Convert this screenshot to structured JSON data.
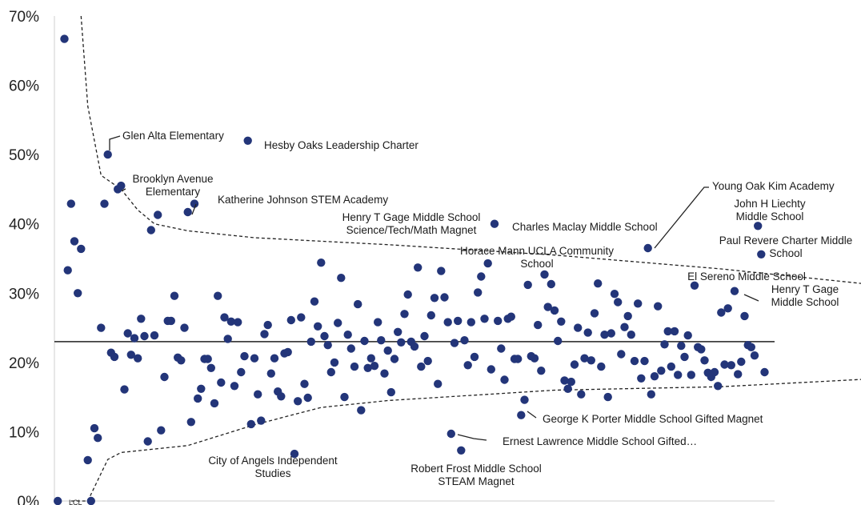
{
  "chart_data": {
    "type": "scatter",
    "ylim": [
      0,
      70
    ],
    "yticks": [
      "0%",
      "10%",
      "20%",
      "30%",
      "40%",
      "50%",
      "60%",
      "70%"
    ],
    "center_line": 23,
    "colors": {
      "point": "#233579",
      "line": "#222222",
      "text": "#1a1a1a"
    },
    "corner_label": "LCL",
    "upper_control_limit": [
      [
        8,
        70
      ],
      [
        10,
        57
      ],
      [
        12,
        52
      ],
      [
        14,
        47
      ],
      [
        20,
        45
      ],
      [
        25,
        42
      ],
      [
        30,
        40
      ],
      [
        40,
        39
      ],
      [
        60,
        38
      ],
      [
        80,
        37.5
      ],
      [
        100,
        37
      ],
      [
        150,
        35.5
      ],
      [
        200,
        33.5
      ],
      [
        250,
        31
      ],
      [
        260,
        29
      ]
    ],
    "lower_control_limit": [
      [
        5,
        0
      ],
      [
        10,
        0
      ],
      [
        12,
        2
      ],
      [
        16,
        6
      ],
      [
        20,
        7
      ],
      [
        40,
        8
      ],
      [
        60,
        11
      ],
      [
        80,
        13.5
      ],
      [
        100,
        14.5
      ],
      [
        150,
        16
      ],
      [
        200,
        16.5
      ],
      [
        260,
        18
      ]
    ],
    "points": [
      [
        1,
        0
      ],
      [
        3,
        66.7
      ],
      [
        4,
        33.3
      ],
      [
        5,
        42.9
      ],
      [
        6,
        37.5
      ],
      [
        7,
        30
      ],
      [
        8,
        36.4
      ],
      [
        10,
        5.9
      ],
      [
        11,
        0
      ],
      [
        12,
        10.5
      ],
      [
        13,
        9.1
      ],
      [
        14,
        25
      ],
      [
        15,
        42.9
      ],
      [
        16,
        50
      ],
      [
        17,
        21.4
      ],
      [
        18,
        20.8
      ],
      [
        19,
        45
      ],
      [
        20,
        45.5
      ],
      [
        21,
        16.1
      ],
      [
        22,
        24.2
      ],
      [
        23,
        21.1
      ],
      [
        24,
        23.5
      ],
      [
        25,
        20.6
      ],
      [
        26,
        26.3
      ],
      [
        27,
        23.8
      ],
      [
        28,
        8.6
      ],
      [
        29,
        39.1
      ],
      [
        30,
        23.9
      ],
      [
        31,
        41.3
      ],
      [
        32,
        10.2
      ],
      [
        33,
        17.9
      ],
      [
        34,
        26
      ],
      [
        35,
        26
      ],
      [
        36,
        29.6
      ],
      [
        37,
        20.7
      ],
      [
        38,
        20.3
      ],
      [
        39,
        25
      ],
      [
        40,
        41.7
      ],
      [
        41,
        11.4
      ],
      [
        42,
        42.9
      ],
      [
        43,
        14.8
      ],
      [
        44,
        16.2
      ],
      [
        45,
        20.5
      ],
      [
        46,
        20.5
      ],
      [
        47,
        19.2
      ],
      [
        48,
        14.1
      ],
      [
        49,
        29.6
      ],
      [
        50,
        17.1
      ],
      [
        51,
        26.5
      ],
      [
        52,
        23.4
      ],
      [
        53,
        25.9
      ],
      [
        54,
        16.6
      ],
      [
        55,
        25.8
      ],
      [
        56,
        18.6
      ],
      [
        57,
        20.9
      ],
      [
        58,
        52
      ],
      [
        59,
        11.1
      ],
      [
        60,
        20.6
      ],
      [
        61,
        15.4
      ],
      [
        62,
        11.6
      ],
      [
        63,
        24.1
      ],
      [
        64,
        25.4
      ],
      [
        65,
        18.4
      ],
      [
        66,
        20.6
      ],
      [
        67,
        15.8
      ],
      [
        68,
        15.1
      ],
      [
        69,
        21.3
      ],
      [
        70,
        21.5
      ],
      [
        71,
        26.1
      ],
      [
        72,
        6.8
      ],
      [
        73,
        14.4
      ],
      [
        74,
        26.5
      ],
      [
        75,
        16.9
      ],
      [
        76,
        14.9
      ],
      [
        77,
        23
      ],
      [
        78,
        28.8
      ],
      [
        79,
        25.2
      ],
      [
        80,
        34.4
      ],
      [
        81,
        23.8
      ],
      [
        82,
        22.5
      ],
      [
        83,
        18.6
      ],
      [
        84,
        20
      ],
      [
        85,
        25.7
      ],
      [
        86,
        32.2
      ],
      [
        87,
        15
      ],
      [
        88,
        24
      ],
      [
        89,
        22
      ],
      [
        90,
        19.4
      ],
      [
        91,
        28.4
      ],
      [
        92,
        13.1
      ],
      [
        93,
        23.1
      ],
      [
        94,
        19.2
      ],
      [
        95,
        20.6
      ],
      [
        96,
        19.5
      ],
      [
        97,
        25.8
      ],
      [
        98,
        23.2
      ],
      [
        99,
        18.4
      ],
      [
        100,
        21.7
      ],
      [
        101,
        15.7
      ],
      [
        102,
        20.5
      ],
      [
        103,
        24.4
      ],
      [
        104,
        22.9
      ],
      [
        105,
        27
      ],
      [
        106,
        29.8
      ],
      [
        107,
        23
      ],
      [
        108,
        22.3
      ],
      [
        109,
        33.7
      ],
      [
        110,
        19.4
      ],
      [
        111,
        23.8
      ],
      [
        112,
        20.2
      ],
      [
        113,
        26.8
      ],
      [
        114,
        29.3
      ],
      [
        115,
        16.9
      ],
      [
        116,
        33.2
      ],
      [
        117,
        29.4
      ],
      [
        118,
        25.8
      ],
      [
        119,
        9.7
      ],
      [
        120,
        22.8
      ],
      [
        121,
        26
      ],
      [
        122,
        7.3
      ],
      [
        123,
        23.2
      ],
      [
        124,
        19.6
      ],
      [
        125,
        25.8
      ],
      [
        126,
        20.8
      ],
      [
        127,
        30.1
      ],
      [
        128,
        32.4
      ],
      [
        129,
        26.3
      ],
      [
        130,
        34.3
      ],
      [
        131,
        19
      ],
      [
        132,
        40
      ],
      [
        133,
        26
      ],
      [
        134,
        22
      ],
      [
        135,
        17.5
      ],
      [
        136,
        26.3
      ],
      [
        137,
        26.6
      ],
      [
        138,
        20.5
      ],
      [
        139,
        20.5
      ],
      [
        140,
        12.4
      ],
      [
        141,
        14.6
      ],
      [
        142,
        31.2
      ],
      [
        143,
        20.9
      ],
      [
        144,
        20.6
      ],
      [
        145,
        25.4
      ],
      [
        146,
        18.8
      ],
      [
        147,
        32.7
      ],
      [
        148,
        28
      ],
      [
        149,
        31.3
      ],
      [
        150,
        27.5
      ],
      [
        151,
        23.1
      ],
      [
        152,
        25.9
      ],
      [
        153,
        17.4
      ],
      [
        154,
        16.2
      ],
      [
        155,
        17.2
      ],
      [
        156,
        19.7
      ],
      [
        157,
        25
      ],
      [
        158,
        15.4
      ],
      [
        159,
        20.6
      ],
      [
        160,
        24.3
      ],
      [
        161,
        20.3
      ],
      [
        162,
        27.1
      ],
      [
        163,
        31.4
      ],
      [
        164,
        19.4
      ],
      [
        165,
        24
      ],
      [
        166,
        15
      ],
      [
        167,
        24.2
      ],
      [
        168,
        29.9
      ],
      [
        169,
        28.7
      ],
      [
        170,
        21.2
      ],
      [
        171,
        25.1
      ],
      [
        172,
        26.7
      ],
      [
        173,
        24
      ],
      [
        174,
        20.2
      ],
      [
        175,
        28.5
      ],
      [
        176,
        17.7
      ],
      [
        177,
        20.2
      ],
      [
        178,
        36.5
      ],
      [
        179,
        15.4
      ],
      [
        180,
        18
      ],
      [
        181,
        28.1
      ],
      [
        182,
        18.8
      ],
      [
        183,
        22.6
      ],
      [
        184,
        24.5
      ],
      [
        185,
        19.4
      ],
      [
        186,
        24.5
      ],
      [
        187,
        18.2
      ],
      [
        188,
        22.4
      ],
      [
        189,
        20.8
      ],
      [
        190,
        23.9
      ],
      [
        191,
        18.2
      ],
      [
        192,
        31.1
      ],
      [
        193,
        22.2
      ],
      [
        194,
        21.9
      ],
      [
        195,
        20.3
      ],
      [
        196,
        18.5
      ],
      [
        197,
        17.9
      ],
      [
        198,
        18.6
      ],
      [
        199,
        16.6
      ],
      [
        200,
        27.2
      ],
      [
        201,
        19.7
      ],
      [
        202,
        27.8
      ],
      [
        203,
        19.6
      ],
      [
        204,
        30.3
      ],
      [
        205,
        18.3
      ],
      [
        206,
        20.1
      ],
      [
        207,
        26.7
      ],
      [
        208,
        22.5
      ],
      [
        209,
        22.2
      ],
      [
        210,
        21
      ],
      [
        211,
        39.7
      ],
      [
        212,
        35.6
      ],
      [
        213,
        18.6
      ]
    ],
    "annotations": [
      {
        "lines": [
          "Glen Alta Elementary"
        ]
      },
      {
        "lines": [
          "Hesby Oaks Leadership Charter"
        ]
      },
      {
        "lines": [
          "Brooklyn Avenue",
          "Elementary"
        ]
      },
      {
        "lines": [
          "Katherine Johnson STEM Academy"
        ]
      },
      {
        "lines": [
          "Henry T Gage Middle School",
          "Science/Tech/Math Magnet"
        ]
      },
      {
        "lines": [
          "Charles Maclay Middle School"
        ]
      },
      {
        "lines": [
          "Young Oak Kim Academy"
        ]
      },
      {
        "lines": [
          "John H Liechty",
          "Middle School"
        ]
      },
      {
        "lines": [
          "Paul Revere Charter Middle",
          "School"
        ]
      },
      {
        "lines": [
          "Horace Mann UCLA Community",
          "School"
        ]
      },
      {
        "lines": [
          "El Sereno Middle School"
        ]
      },
      {
        "lines": [
          "Henry T Gage",
          "Middle School"
        ]
      },
      {
        "lines": [
          "George K Porter Middle School Gifted Magnet"
        ]
      },
      {
        "lines": [
          "Ernest Lawrence Middle School Gifted…"
        ]
      },
      {
        "lines": [
          "Robert Frost Middle School",
          "STEAM Magnet"
        ]
      },
      {
        "lines": [
          "City of Angels Independent",
          "Studies"
        ]
      }
    ]
  }
}
